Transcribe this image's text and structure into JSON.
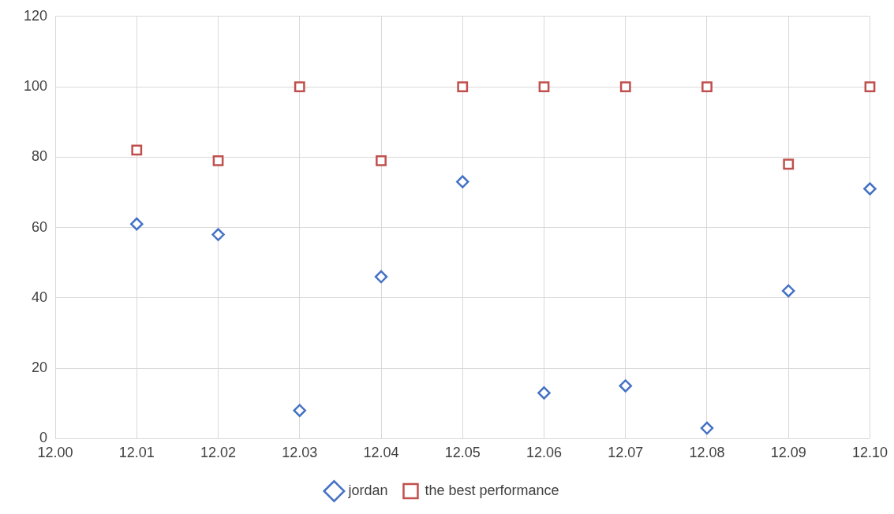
{
  "chart_data": {
    "type": "scatter",
    "x": [
      12.01,
      12.02,
      12.03,
      12.04,
      12.05,
      12.06,
      12.07,
      12.08,
      12.09,
      12.1
    ],
    "series": [
      {
        "name": "jordan",
        "color": "#4472c4",
        "marker": "diamond",
        "values": [
          61,
          58,
          8,
          46,
          73,
          13,
          15,
          3,
          42,
          71
        ]
      },
      {
        "name": "the best performance",
        "color": "#c0504d",
        "marker": "square",
        "values": [
          82,
          79,
          100,
          79,
          100,
          100,
          100,
          100,
          78,
          100
        ]
      }
    ],
    "xlim": [
      12,
      12.1
    ],
    "xticks": [
      {
        "value": 12,
        "label": "12.00"
      },
      {
        "value": 12.01,
        "label": "12.01"
      },
      {
        "value": 12.02,
        "label": "12.02"
      },
      {
        "value": 12.03,
        "label": "12.03"
      },
      {
        "value": 12.04,
        "label": "12.04"
      },
      {
        "value": 12.05,
        "label": "12.05"
      },
      {
        "value": 12.06,
        "label": "12.06"
      },
      {
        "value": 12.07,
        "label": "12.07"
      },
      {
        "value": 12.08,
        "label": "12.08"
      },
      {
        "value": 12.09,
        "label": "12.09"
      },
      {
        "value": 12.1,
        "label": "12.10"
      }
    ],
    "ylim": [
      0,
      120
    ],
    "yticks": [
      0,
      20,
      40,
      60,
      80,
      100,
      120
    ],
    "grid": true,
    "legend": "bottom"
  }
}
